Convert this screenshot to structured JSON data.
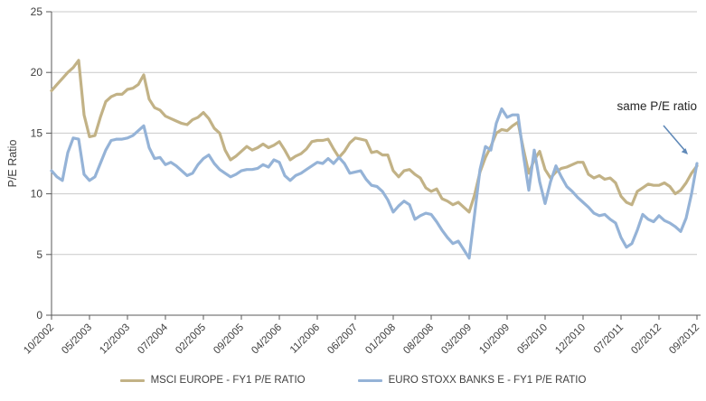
{
  "chart_data": {
    "type": "line",
    "title": "",
    "xlabel": "",
    "ylabel": "P/E Ratio",
    "ylim": [
      0,
      25
    ],
    "yticks": [
      0,
      5,
      10,
      15,
      20,
      25
    ],
    "grid": "horizontal",
    "legend_position": "bottom",
    "n_points": 120,
    "months_per_tick": 7,
    "x_tick_labels": [
      "10/2002",
      "05/2003",
      "12/2003",
      "07/2004",
      "02/2005",
      "09/2005",
      "04/2006",
      "11/2006",
      "06/2007",
      "01/2008",
      "08/2008",
      "03/2009",
      "10/2009",
      "05/2010",
      "12/2010",
      "07/2011",
      "02/2012",
      "09/2012"
    ],
    "series": [
      {
        "name": "MSCI EUROPE - FY1 P/E RATIO",
        "color": "#c2b286",
        "values": [
          18.5,
          19.0,
          19.5,
          20.0,
          20.4,
          21.0,
          16.5,
          14.7,
          14.8,
          16.3,
          17.6,
          18.0,
          18.2,
          18.2,
          18.6,
          18.7,
          19.0,
          19.8,
          17.8,
          17.1,
          16.9,
          16.4,
          16.2,
          16.0,
          15.8,
          15.7,
          16.1,
          16.3,
          16.7,
          16.2,
          15.4,
          15.0,
          13.6,
          12.8,
          13.1,
          13.5,
          13.9,
          13.6,
          13.8,
          14.1,
          13.8,
          14.0,
          14.3,
          13.6,
          12.8,
          13.1,
          13.3,
          13.7,
          14.3,
          14.4,
          14.4,
          14.5,
          13.7,
          13.0,
          13.5,
          14.2,
          14.6,
          14.5,
          14.4,
          13.4,
          13.5,
          13.2,
          13.2,
          11.9,
          11.4,
          11.9,
          12.0,
          11.6,
          11.3,
          10.5,
          10.2,
          10.4,
          9.6,
          9.4,
          9.1,
          9.3,
          8.9,
          8.5,
          9.9,
          11.8,
          13.0,
          13.9,
          15.0,
          15.3,
          15.2,
          15.6,
          15.9,
          13.7,
          11.7,
          12.8,
          13.5,
          12.0,
          11.3,
          11.8,
          12.1,
          12.2,
          12.4,
          12.6,
          12.6,
          11.6,
          11.3,
          11.5,
          11.2,
          11.3,
          10.9,
          9.8,
          9.3,
          9.1,
          10.2,
          10.5,
          10.8,
          10.7,
          10.7,
          10.9,
          10.6,
          10.0,
          10.3,
          10.9,
          11.7,
          12.3
        ]
      },
      {
        "name": "EURO STOXX BANKS E - FY1 P/E RATIO",
        "color": "#95b3d7",
        "values": [
          11.9,
          11.4,
          11.1,
          13.4,
          14.6,
          14.5,
          11.6,
          11.1,
          11.4,
          12.5,
          13.6,
          14.4,
          14.5,
          14.5,
          14.6,
          14.8,
          15.2,
          15.6,
          13.8,
          12.9,
          13.0,
          12.4,
          12.6,
          12.3,
          11.9,
          11.5,
          11.7,
          12.4,
          12.9,
          13.2,
          12.5,
          12.0,
          11.7,
          11.4,
          11.6,
          11.9,
          12.0,
          12.0,
          12.1,
          12.4,
          12.2,
          12.8,
          12.6,
          11.5,
          11.1,
          11.5,
          11.7,
          12.0,
          12.3,
          12.6,
          12.5,
          12.9,
          12.5,
          13.0,
          12.5,
          11.7,
          11.8,
          11.9,
          11.2,
          10.7,
          10.6,
          10.2,
          9.5,
          8.5,
          9.0,
          9.4,
          9.1,
          7.9,
          8.2,
          8.4,
          8.3,
          7.7,
          7.0,
          6.4,
          5.9,
          6.1,
          5.4,
          4.7,
          8.3,
          12.0,
          13.9,
          13.6,
          15.8,
          17.0,
          16.3,
          16.5,
          16.5,
          13.2,
          10.3,
          13.6,
          11.0,
          9.2,
          11.0,
          12.3,
          11.4,
          10.6,
          10.2,
          9.7,
          9.3,
          8.9,
          8.4,
          8.2,
          8.3,
          7.9,
          7.6,
          6.4,
          5.6,
          5.9,
          7.0,
          8.3,
          7.9,
          7.7,
          8.2,
          7.8,
          7.6,
          7.3,
          6.9,
          8.0,
          10.0,
          12.5
        ]
      }
    ],
    "annotation": {
      "text": "same P/E ratio",
      "arrow_color": "#6089b8"
    }
  },
  "colors": {
    "background": "#ffffff",
    "gridline": "#c9c9c9",
    "axis": "#595959",
    "tick_text": "#3f3f3f",
    "annotation_text": "#262626"
  }
}
